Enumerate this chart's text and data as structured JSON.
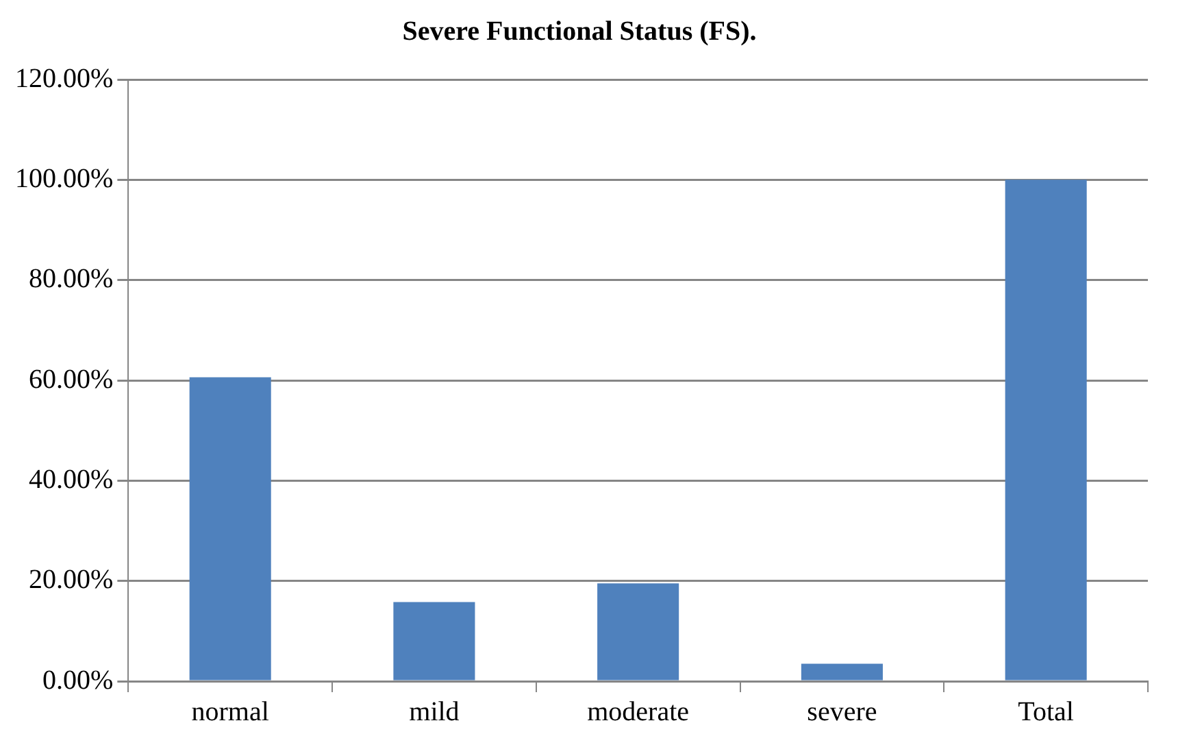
{
  "chart_data": {
    "type": "bar",
    "title": "Severe Functional Status (FS).",
    "categories": [
      "normal",
      "mild",
      "moderate",
      "severe",
      "Total"
    ],
    "values": [
      60.6,
      15.8,
      19.5,
      3.5,
      100
    ],
    "color": "#4f81bd",
    "ylim": [
      0,
      120
    ],
    "yticks": [
      {
        "value": 0,
        "label": "0.00%"
      },
      {
        "value": 20,
        "label": "20.00%"
      },
      {
        "value": 40,
        "label": "40.00%"
      },
      {
        "value": 60,
        "label": "60.00%"
      },
      {
        "value": 80,
        "label": "80.00%"
      },
      {
        "value": 100,
        "label": "100.00%"
      },
      {
        "value": 120,
        "label": "120.00%"
      }
    ],
    "grid": "y",
    "legend": false
  }
}
